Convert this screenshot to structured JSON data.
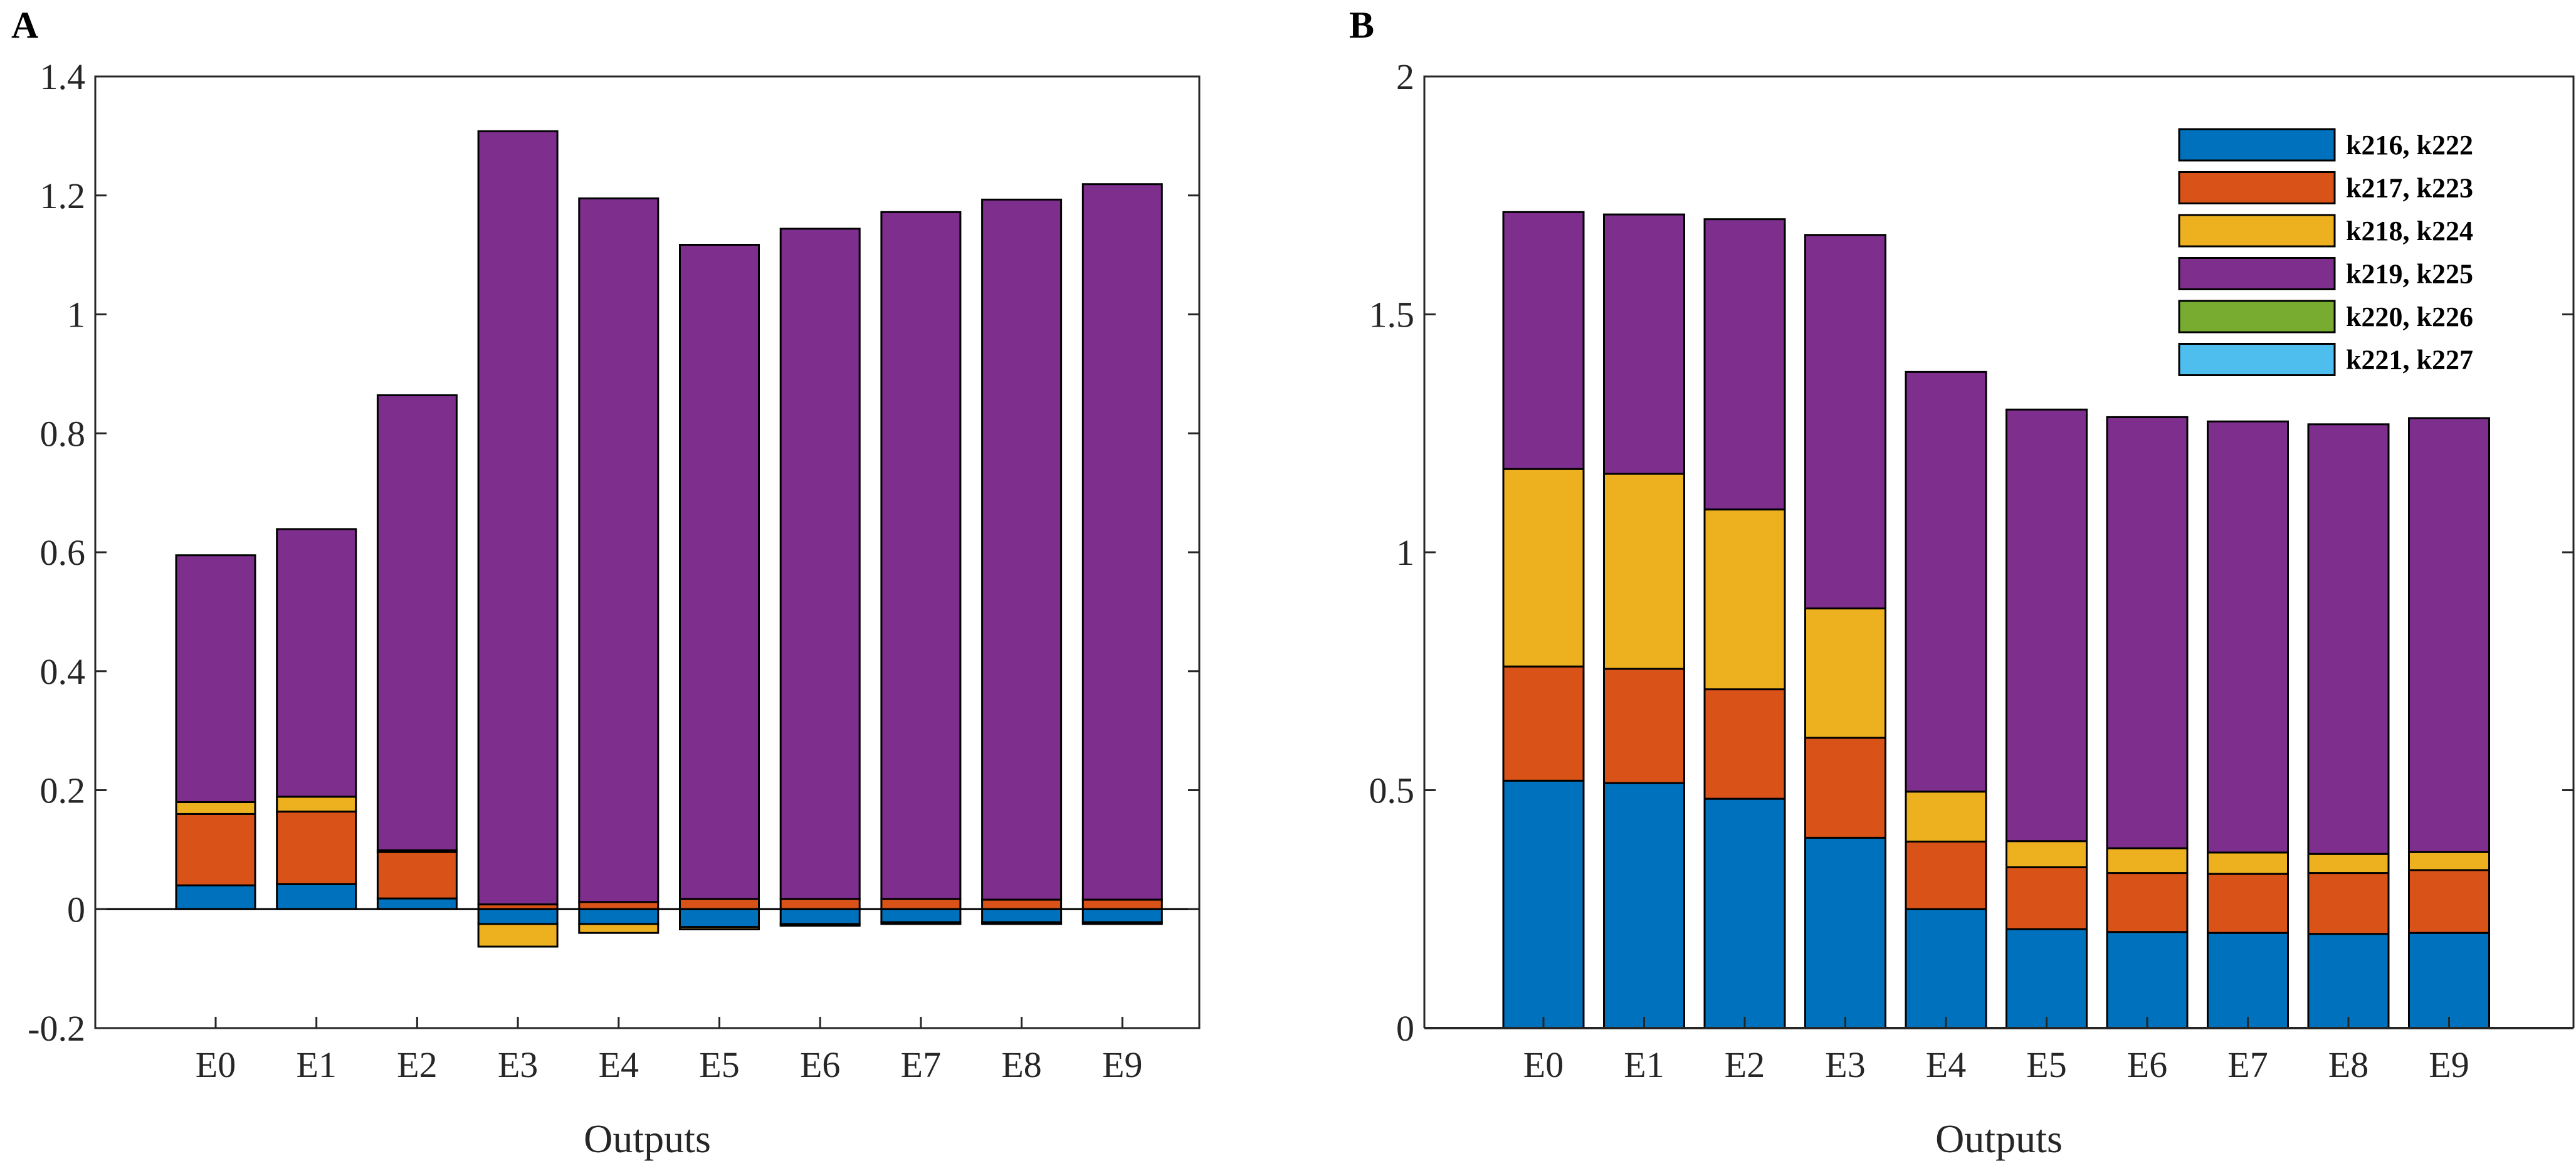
{
  "chart_data": [
    {
      "panel_label": "A",
      "type": "bar",
      "stacked": true,
      "xlabel": "Outputs",
      "ylabel": "",
      "ylim": [
        -0.2,
        1.4
      ],
      "yticks": [
        -0.2,
        0,
        0.2,
        0.4,
        0.6,
        0.8,
        1,
        1.2,
        1.4
      ],
      "ytick_labels": [
        "-0.2",
        "0",
        "0.2",
        "0.4",
        "0.6",
        "0.8",
        "1",
        "1.2",
        "1.4"
      ],
      "zero_line": true,
      "categories": [
        "E0",
        "E1",
        "E2",
        "E3",
        "E4",
        "E5",
        "E6",
        "E7",
        "E8",
        "E9"
      ],
      "series": [
        {
          "name": "k216, k222",
          "color": "#0072BD",
          "values": [
            0.04,
            0.042,
            0.018,
            -0.025,
            -0.025,
            -0.03,
            -0.025,
            -0.022,
            -0.022,
            -0.022
          ]
        },
        {
          "name": "k217, k223",
          "color": "#D95319",
          "values": [
            0.12,
            0.122,
            0.078,
            0.008,
            0.012,
            0.017,
            0.017,
            0.017,
            0.016,
            0.016
          ]
        },
        {
          "name": "k218, k224",
          "color": "#EDB120",
          "values": [
            0.02,
            0.025,
            0.003,
            -0.038,
            -0.015,
            -0.004,
            -0.003,
            -0.003,
            -0.003,
            -0.003
          ]
        },
        {
          "name": "k219, k225",
          "color": "#7E2F8E",
          "values": [
            0.415,
            0.45,
            0.765,
            1.3,
            1.183,
            1.1,
            1.127,
            1.155,
            1.177,
            1.203
          ]
        },
        {
          "name": "k220, k226",
          "color": "#77AC30",
          "values": [
            0,
            0,
            0,
            0,
            0,
            0,
            0,
            0,
            0,
            0
          ]
        },
        {
          "name": "k221, k227",
          "color": "#4DBEEE",
          "values": [
            0,
            0,
            0,
            0,
            0,
            0,
            0,
            0,
            0,
            0
          ]
        }
      ]
    },
    {
      "panel_label": "B",
      "type": "bar",
      "stacked": true,
      "xlabel": "Outputs",
      "ylabel": "",
      "ylim": [
        0,
        2
      ],
      "yticks": [
        0,
        0.5,
        1,
        1.5,
        2
      ],
      "ytick_labels": [
        "0",
        "0.5",
        "1",
        "1.5",
        "2"
      ],
      "legend_position": "top-right",
      "categories": [
        "E0",
        "E1",
        "E2",
        "E3",
        "E4",
        "E5",
        "E6",
        "E7",
        "E8",
        "E9"
      ],
      "series": [
        {
          "name": "k216, k222",
          "color": "#0072BD",
          "values": [
            0.52,
            0.515,
            0.482,
            0.4,
            0.25,
            0.208,
            0.202,
            0.2,
            0.198,
            0.2
          ]
        },
        {
          "name": "k217, k223",
          "color": "#D95319",
          "values": [
            0.24,
            0.24,
            0.23,
            0.21,
            0.142,
            0.13,
            0.124,
            0.124,
            0.128,
            0.132
          ]
        },
        {
          "name": "k218, k224",
          "color": "#EDB120",
          "values": [
            0.415,
            0.41,
            0.378,
            0.272,
            0.105,
            0.055,
            0.052,
            0.045,
            0.04,
            0.038
          ]
        },
        {
          "name": "k219, k225",
          "color": "#7E2F8E",
          "values": [
            0.54,
            0.545,
            0.61,
            0.785,
            0.882,
            0.907,
            0.906,
            0.906,
            0.903,
            0.912
          ]
        },
        {
          "name": "k220, k226",
          "color": "#77AC30",
          "values": [
            0,
            0,
            0,
            0,
            0,
            0,
            0,
            0,
            0,
            0
          ]
        },
        {
          "name": "k221, k227",
          "color": "#4DBEEE",
          "values": [
            0,
            0,
            0,
            0,
            0,
            0,
            0,
            0,
            0,
            0
          ]
        }
      ]
    }
  ]
}
